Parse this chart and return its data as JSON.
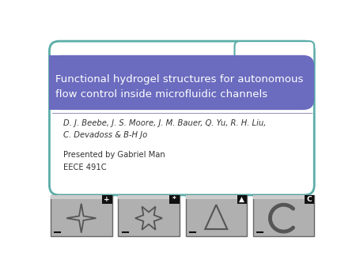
{
  "title_line1": "Functional hydrogel structures for autonomous",
  "title_line2": "flow control inside microfluidic channels",
  "title_bg_color": "#6b6bbf",
  "title_text_color": "#ffffff",
  "border_color": "#5aada8",
  "content_bg_color": "#ffffff",
  "author_text": "D. J. Beebe, J. S. Moore, J. M. Bauer, Q. Yu, R. H. Liu,\nC. Devadoss & B-H Jo",
  "presenter_text": "Presented by Gabriel Man\nEECE 491C",
  "author_color": "#333333",
  "image_bg_color": "#b0b0b0",
  "image_border_color": "#666666",
  "icon_labels": [
    "+",
    "*",
    "▲",
    "C"
  ],
  "icon_label_bg": "#111111",
  "icon_label_color": "#ffffff",
  "fig_bg_color": "#ffffff",
  "separator_color": "#9999bb",
  "shape_color": "#555555"
}
